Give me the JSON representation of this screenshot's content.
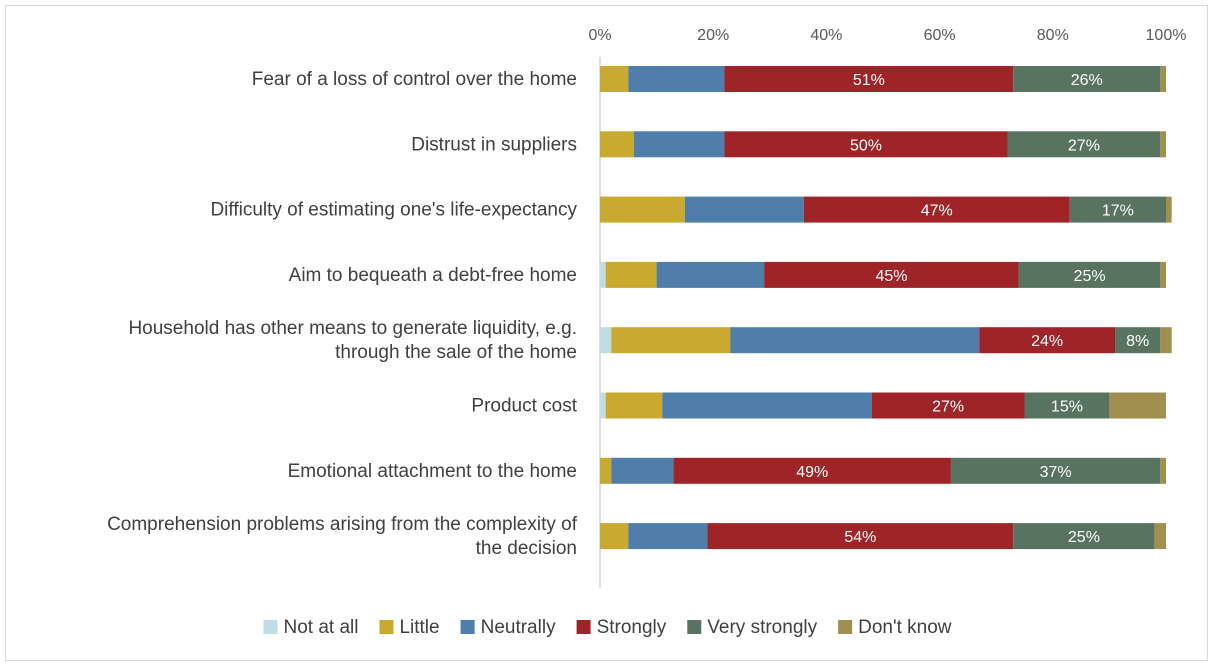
{
  "chart_data": {
    "type": "bar",
    "orientation": "horizontal",
    "stacked": "percent",
    "title": "",
    "xlabel": "",
    "ylabel": "",
    "xlim": [
      0,
      100
    ],
    "x_ticks": [
      "0%",
      "20%",
      "40%",
      "60%",
      "80%",
      "100%"
    ],
    "x_tick_values": [
      0,
      20,
      40,
      60,
      80,
      100
    ],
    "x_axis_position": "top",
    "grid": false,
    "legend_position": "bottom",
    "categories": [
      [
        "Fear of a loss of control over the home"
      ],
      [
        "Distrust in suppliers"
      ],
      [
        "Difficulty of estimating one's life-expectancy"
      ],
      [
        "Aim to bequeath a debt-free home"
      ],
      [
        "Household has other means to generate liquidity, e.g.",
        "through the sale of the home"
      ],
      [
        "Product cost"
      ],
      [
        "Emotional attachment to the home"
      ],
      [
        "Comprehension problems arising from the complexity of",
        "the decision"
      ]
    ],
    "series": [
      {
        "name": "Not at all",
        "color": "#bfdde3",
        "values": [
          0,
          0,
          0,
          1,
          2,
          1,
          0,
          0
        ],
        "labels": [
          "",
          "",
          "",
          "",
          "",
          "",
          "",
          ""
        ]
      },
      {
        "name": "Little",
        "color": "#c9a92e",
        "values": [
          5,
          6,
          15,
          9,
          21,
          10,
          2,
          5
        ],
        "labels": [
          "",
          "",
          "",
          "",
          "",
          "",
          "",
          ""
        ]
      },
      {
        "name": "Neutrally",
        "color": "#4e7ea9",
        "values": [
          17,
          16,
          21,
          19,
          44,
          37,
          11,
          14
        ],
        "labels": [
          "",
          "",
          "",
          "",
          "",
          "",
          "",
          ""
        ]
      },
      {
        "name": "Strongly",
        "color": "#9e2428",
        "values": [
          51,
          50,
          47,
          45,
          24,
          27,
          49,
          54
        ],
        "labels": [
          "51%",
          "50%",
          "47%",
          "45%",
          "24%",
          "27%",
          "49%",
          "54%"
        ]
      },
      {
        "name": "Very strongly",
        "color": "#587360",
        "values": [
          26,
          27,
          17,
          25,
          8,
          15,
          37,
          25
        ],
        "labels": [
          "26%",
          "27%",
          "17%",
          "25%",
          "8%",
          "15%",
          "37%",
          "25%"
        ]
      },
      {
        "name": "Don't know",
        "color": "#a08f4f",
        "values": [
          1,
          1,
          1,
          1,
          2,
          10,
          1,
          2
        ],
        "labels": [
          "",
          "",
          "",
          "",
          "",
          "",
          "",
          ""
        ]
      }
    ]
  }
}
